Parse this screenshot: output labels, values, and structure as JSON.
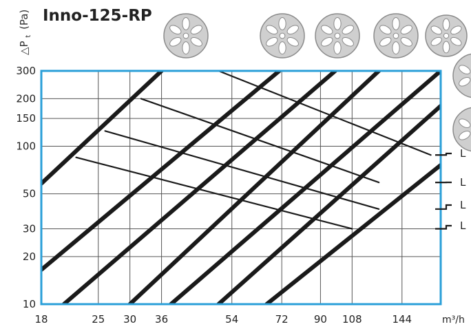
{
  "chart_data": {
    "type": "line",
    "title": "Inno-125-RP",
    "ylabel": "△P",
    "ylabel_sub": "t",
    "ylabel_unit": "(Pa)",
    "xlabel": "m³/h",
    "x_scale": "log",
    "y_scale": "log",
    "xlim": [
      18,
      180
    ],
    "ylim": [
      10,
      300
    ],
    "x_ticks": [
      18,
      25,
      30,
      36,
      54,
      72,
      90,
      108,
      144
    ],
    "x_tick_labels": [
      "18",
      "25",
      "30",
      "36",
      "54",
      "72",
      "90",
      "108",
      "144"
    ],
    "y_ticks": [
      10,
      20,
      30,
      50,
      100,
      150,
      200,
      300
    ],
    "y_tick_labels": [
      "10",
      "20",
      "30",
      "50",
      "100",
      "150",
      "200",
      "300"
    ],
    "grid": true,
    "series": [
      {
        "kind": "resistance",
        "points": [
          [
            18,
            58
          ],
          [
            36,
            300
          ]
        ]
      },
      {
        "kind": "resistance",
        "points": [
          [
            18,
            16.5
          ],
          [
            71,
            300
          ]
        ]
      },
      {
        "kind": "resistance",
        "points": [
          [
            20.5,
            10
          ],
          [
            98,
            300
          ]
        ]
      },
      {
        "kind": "resistance",
        "points": [
          [
            30,
            10
          ],
          [
            126,
            300
          ]
        ]
      },
      {
        "kind": "resistance",
        "points": [
          [
            38,
            10
          ],
          [
            180,
            300
          ]
        ]
      },
      {
        "kind": "resistance",
        "points": [
          [
            50,
            10
          ],
          [
            180,
            180
          ]
        ]
      },
      {
        "kind": "resistance",
        "points": [
          [
            66,
            10
          ],
          [
            180,
            76
          ]
        ]
      },
      {
        "kind": "sound",
        "points": [
          [
            50,
            300
          ],
          [
            170,
            88
          ]
        ]
      },
      {
        "kind": "sound",
        "points": [
          [
            32,
            200
          ],
          [
            126,
            59
          ]
        ]
      },
      {
        "kind": "sound",
        "points": [
          [
            26,
            125
          ],
          [
            126,
            40
          ]
        ]
      },
      {
        "kind": "sound",
        "points": [
          [
            22,
            85
          ],
          [
            108,
            30
          ]
        ]
      }
    ],
    "curve_labels": [
      {
        "text": "L",
        "at_y": 88
      },
      {
        "text": "L",
        "at_y": 59
      },
      {
        "text": "L",
        "at_y": 40
      },
      {
        "text": "L",
        "at_y": 30
      }
    ]
  },
  "icons": [
    "fan-disc-icon",
    "fan-disc-icon",
    "fan-disc-icon",
    "fan-disc-icon",
    "fan-disc-icon",
    "fan-disc-icon",
    "fan-disc-icon"
  ],
  "colors": {
    "frame": "#2a9fd8",
    "curve": "#1a1a1a",
    "grid": "#555555",
    "icon_fill": "#cfcfcf",
    "icon_stroke": "#8a8a8a"
  }
}
